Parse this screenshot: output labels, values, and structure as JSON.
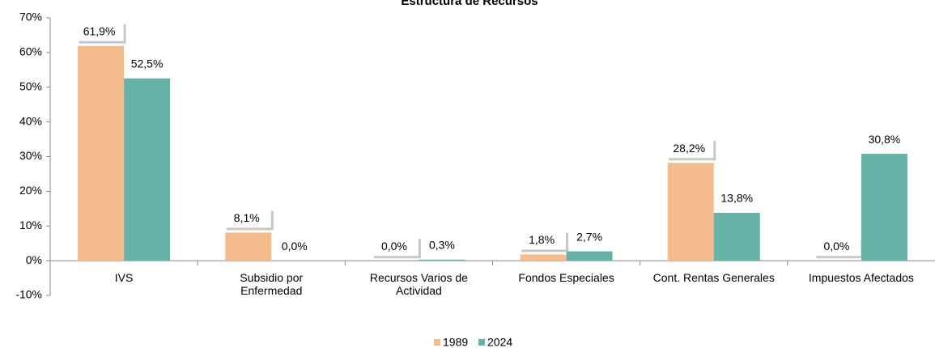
{
  "chart_data": {
    "type": "bar",
    "title": "Estructura de Recursos",
    "categories": [
      "IVS",
      "Subsidio por\nEnfermedad",
      "Recursos Varios de\nActividad",
      "Fondos Especiales",
      "Cont. Rentas Generales",
      "Impuestos Afectados"
    ],
    "series": [
      {
        "name": "1989",
        "color": "#f4bc8c",
        "values": [
          61.9,
          8.1,
          0.0,
          1.8,
          28.2,
          0.0
        ],
        "value_labels": [
          "61,9%",
          "8,1%",
          "0,0%",
          "1,8%",
          "28,2%",
          "0,0%"
        ]
      },
      {
        "name": "2024",
        "color": "#66b2a6",
        "values": [
          52.5,
          0.0,
          0.3,
          2.7,
          13.8,
          30.8
        ],
        "value_labels": [
          "52,5%",
          "0,0%",
          "0,3%",
          "2,7%",
          "13,8%",
          "30,8%"
        ]
      }
    ],
    "ylim": [
      -10,
      70
    ],
    "yticks": [
      {
        "value": -10,
        "label": "-10%"
      },
      {
        "value": 0,
        "label": "0%"
      },
      {
        "value": 10,
        "label": "10%"
      },
      {
        "value": 20,
        "label": "20%"
      },
      {
        "value": 30,
        "label": "30%"
      },
      {
        "value": 40,
        "label": "40%"
      },
      {
        "value": 50,
        "label": "50%"
      },
      {
        "value": 60,
        "label": "60%"
      },
      {
        "value": 70,
        "label": "70%"
      }
    ],
    "legend": "bottom"
  }
}
